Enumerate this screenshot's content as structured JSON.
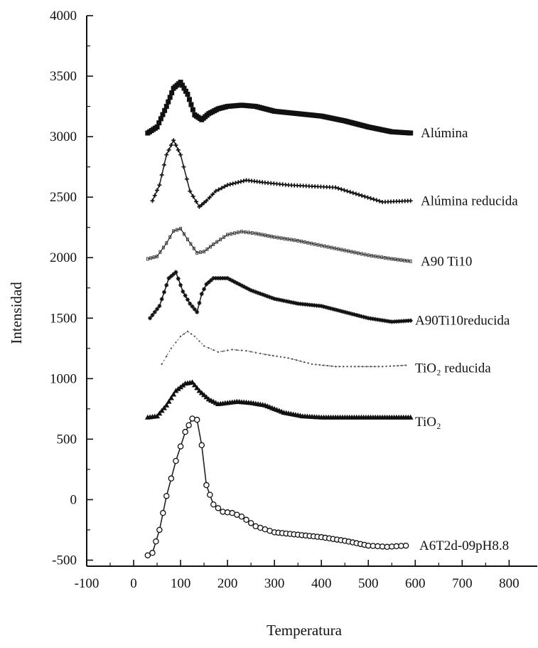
{
  "chart_data": {
    "type": "line",
    "title": "",
    "xlabel": "Temperatura",
    "ylabel": "Intensidad",
    "xlim": [
      -100,
      860
    ],
    "ylim": [
      -550,
      4000
    ],
    "xticks": [
      -100,
      0,
      100,
      200,
      300,
      400,
      500,
      600,
      700,
      800
    ],
    "yticks": [
      -500,
      0,
      500,
      1000,
      1500,
      2000,
      2500,
      3000,
      3500,
      4000
    ],
    "grid": false,
    "legend": "series names printed at right end of each curve",
    "series": [
      {
        "name": "Alúmina",
        "marker": "filled-square",
        "x": [
          30,
          50,
          70,
          85,
          100,
          115,
          130,
          145,
          160,
          180,
          200,
          230,
          260,
          300,
          350,
          400,
          450,
          500,
          550,
          590
        ],
        "y": [
          3030,
          3080,
          3250,
          3400,
          3450,
          3350,
          3180,
          3140,
          3190,
          3230,
          3250,
          3260,
          3250,
          3210,
          3190,
          3170,
          3130,
          3080,
          3040,
          3030
        ]
      },
      {
        "name": "Alúmina reducida",
        "marker": "plus",
        "x": [
          40,
          55,
          70,
          85,
          100,
          120,
          140,
          155,
          175,
          200,
          240,
          280,
          330,
          380,
          430,
          480,
          530,
          590
        ],
        "y": [
          2470,
          2600,
          2850,
          2970,
          2850,
          2550,
          2420,
          2470,
          2550,
          2600,
          2640,
          2620,
          2600,
          2590,
          2580,
          2520,
          2460,
          2470
        ]
      },
      {
        "name": "A90 Ti10",
        "marker": "small-open",
        "x": [
          30,
          50,
          70,
          85,
          100,
          115,
          135,
          150,
          170,
          200,
          230,
          260,
          300,
          350,
          400,
          450,
          500,
          550,
          590
        ],
        "y": [
          1990,
          2010,
          2120,
          2220,
          2240,
          2150,
          2040,
          2050,
          2110,
          2190,
          2215,
          2200,
          2170,
          2140,
          2100,
          2060,
          2020,
          1990,
          1970
        ]
      },
      {
        "name": "A90Ti10reducida",
        "marker": "star",
        "x": [
          35,
          55,
          75,
          90,
          105,
          120,
          135,
          145,
          155,
          170,
          200,
          250,
          300,
          350,
          400,
          450,
          500,
          550,
          590
        ],
        "y": [
          1500,
          1600,
          1830,
          1880,
          1720,
          1620,
          1550,
          1700,
          1780,
          1830,
          1830,
          1730,
          1660,
          1620,
          1600,
          1550,
          1500,
          1470,
          1480
        ]
      },
      {
        "name": "TiO₂ reducida",
        "marker": "small-dot",
        "x": [
          60,
          80,
          100,
          115,
          130,
          150,
          180,
          210,
          240,
          280,
          330,
          380,
          430,
          480,
          530,
          580
        ],
        "y": [
          1120,
          1250,
          1350,
          1390,
          1350,
          1270,
          1220,
          1240,
          1230,
          1200,
          1170,
          1120,
          1100,
          1100,
          1100,
          1110
        ]
      },
      {
        "name": "TiO₂",
        "marker": "filled-triangle",
        "x": [
          30,
          50,
          70,
          90,
          110,
          125,
          140,
          160,
          180,
          220,
          250,
          280,
          320,
          360,
          400,
          450,
          500,
          550,
          590
        ],
        "y": [
          680,
          690,
          780,
          900,
          960,
          970,
          900,
          830,
          790,
          810,
          800,
          780,
          720,
          690,
          680,
          680,
          680,
          680,
          680
        ]
      },
      {
        "name": "A6T2d-09pH8.8",
        "marker": "open-circle",
        "x": [
          30,
          40,
          55,
          70,
          90,
          110,
          125,
          135,
          145,
          155,
          170,
          190,
          210,
          230,
          260,
          300,
          350,
          400,
          450,
          500,
          540,
          580
        ],
        "y": [
          -460,
          -440,
          -250,
          30,
          320,
          560,
          670,
          660,
          450,
          120,
          -40,
          -100,
          -110,
          -140,
          -220,
          -270,
          -290,
          -310,
          -340,
          -380,
          -390,
          -380
        ]
      }
    ]
  }
}
